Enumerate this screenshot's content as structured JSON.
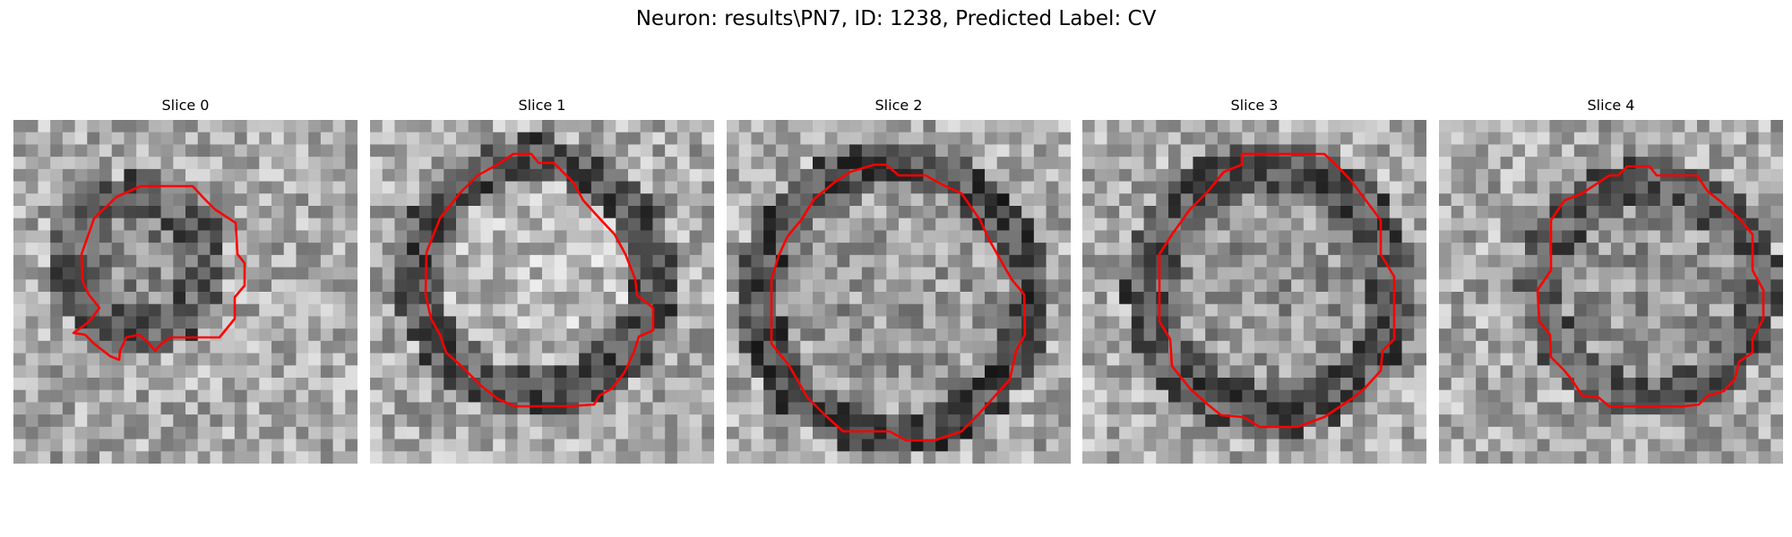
{
  "figure": {
    "title": "Neuron: results\\PN7, ID: 1238, Predicted Label: CV",
    "contour_color": "#ff0000"
  },
  "panels": [
    {
      "title": "Slice 0"
    },
    {
      "title": "Slice 1"
    },
    {
      "title": "Slice 2"
    },
    {
      "title": "Slice 3"
    },
    {
      "title": "Slice 4"
    }
  ]
}
